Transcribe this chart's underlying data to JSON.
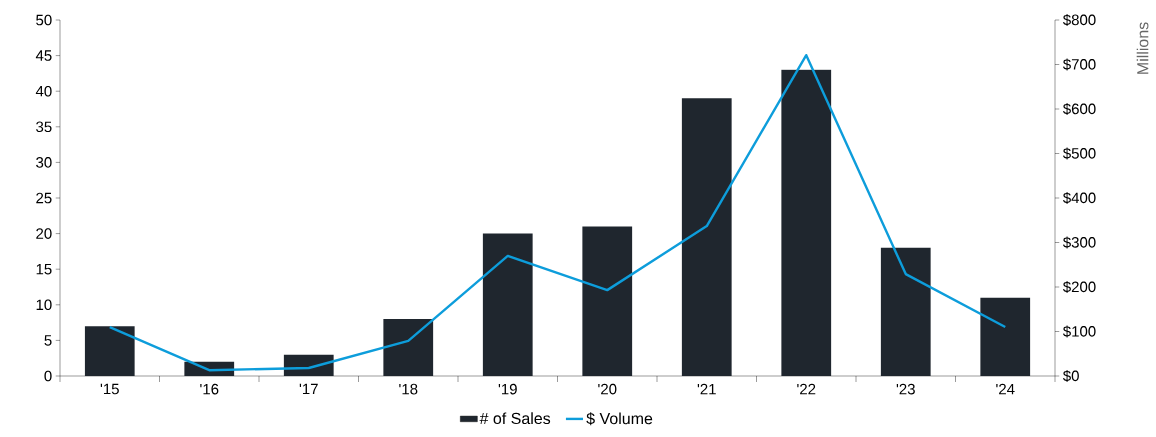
{
  "chart_data": {
    "type": "bar",
    "categories": [
      "'15",
      "'16",
      "'17",
      "'18",
      "'19",
      "'20",
      "'21",
      "'22",
      "'23",
      "'24"
    ],
    "series": [
      {
        "name": "# of Sales",
        "color": "#1f262e",
        "values": [
          7,
          2,
          3,
          8,
          20,
          21,
          39,
          43,
          18,
          11
        ]
      },
      {
        "name": "$ Volume",
        "type": "line",
        "axis": "y2",
        "color": "#0d9ddb",
        "values": [
          110,
          13,
          18,
          79,
          270,
          193,
          337,
          721,
          229,
          110
        ]
      }
    ],
    "ylim": [
      0,
      50
    ],
    "yticks": [
      0,
      5,
      10,
      15,
      20,
      25,
      30,
      35,
      40,
      45,
      50
    ],
    "y2lim": [
      0,
      800
    ],
    "y2ticks": [
      {
        "value": 0,
        "label": "$0"
      },
      {
        "value": 100,
        "label": "$100"
      },
      {
        "value": 200,
        "label": "$200"
      },
      {
        "value": 300,
        "label": "$300"
      },
      {
        "value": 400,
        "label": "$400"
      },
      {
        "value": 500,
        "label": "$500"
      },
      {
        "value": 600,
        "label": "$600"
      },
      {
        "value": 700,
        "label": "$700"
      },
      {
        "value": 800,
        "label": "$800"
      }
    ],
    "y2label": "Millions",
    "legend": "bottom",
    "grid": false
  }
}
